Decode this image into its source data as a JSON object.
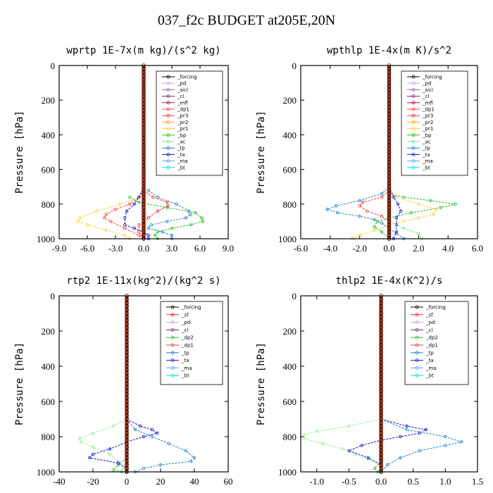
{
  "figure_title": "037_f2c  BUDGET at205E,20N",
  "colors": {
    "forcing": "#000000",
    "pd": "#c8a0e0",
    "sicl": "#8c64c8",
    "cl": "#8a1a8a",
    "mfl": "#c01050",
    "dp1": "#ff4040",
    "pr3": "#ff3030",
    "pr2": "#ffa500",
    "pr1": "#ffd030",
    "bp": "#20c020",
    "ac": "#80e080",
    "tp": "#2080d0",
    "ta": "#1010e0",
    "ma": "#60a0ff",
    "bt": "#00e0e0",
    "sf": "#ff2020",
    "dp2": "#30c030",
    "dp1_green": "#90f090",
    "zero_line": "#b03010"
  },
  "chart_data": [
    {
      "type": "line",
      "title": "wprtp  1E-7x(m kg)/(s^2 kg)",
      "ylabel": "Pressure [hPa]",
      "xlim": [
        -9,
        9
      ],
      "ylim": [
        1000,
        0
      ],
      "xticks": [
        "-9.0",
        "-6.0",
        "-3.0",
        "0.0",
        "3.0",
        "6.0",
        "9.0"
      ],
      "yticks": [
        "0",
        "200",
        "400",
        "600",
        "800",
        "1000"
      ],
      "legend": [
        "_forcing",
        "_pd",
        "_sicl",
        "_cl",
        "_mfl",
        "_dp1",
        "_pr3",
        "_pr2",
        "_pr1",
        "_bp",
        "_ac",
        "_tp",
        "_ta",
        "_ma",
        "_bt"
      ],
      "series": [
        {
          "key": "pr1",
          "name": "_pr1",
          "p": [
            720,
            760,
            800,
            840,
            880,
            900,
            920,
            950,
            980,
            1000
          ],
          "x": [
            0,
            -0.4,
            -2.5,
            -5,
            -6.8,
            -7,
            -6,
            -4,
            -2,
            -1.5
          ]
        },
        {
          "key": "dp1",
          "name": "_dp1",
          "p": [
            720,
            760,
            800,
            830,
            860,
            880,
            900,
            940,
            980,
            1000
          ],
          "x": [
            0,
            -0.5,
            -1.5,
            -3,
            -4,
            -4.2,
            -3.5,
            -2,
            -0.5,
            0
          ]
        },
        {
          "key": "bp",
          "name": "_bp",
          "p": [
            760,
            790,
            820,
            850,
            880,
            900,
            920,
            940,
            960,
            980,
            1000
          ],
          "x": [
            -1.5,
            -0.5,
            2.5,
            5.5,
            6.2,
            6.3,
            5,
            3,
            1.5,
            1.2,
            1.5
          ]
        },
        {
          "key": "tp",
          "name": "_tp",
          "p": [
            720,
            760,
            800,
            840,
            860,
            880,
            900,
            920,
            940,
            960,
            980,
            1000
          ],
          "x": [
            0.5,
            1.5,
            3.5,
            4.8,
            5,
            4.5,
            2.5,
            0.8,
            0.5,
            2,
            3,
            3
          ]
        },
        {
          "key": "ta",
          "name": "_ta",
          "p": [
            700,
            760,
            800,
            840,
            880,
            920,
            940,
            960,
            980,
            1000
          ],
          "x": [
            0,
            -0.5,
            -1,
            -1.8,
            -2,
            -2,
            -1,
            0,
            0.5,
            0.5
          ]
        },
        {
          "key": "pr3",
          "name": "_pr3",
          "p": [
            720,
            760,
            790,
            810,
            840,
            880,
            920,
            960,
            1000
          ],
          "x": [
            0,
            1,
            2.5,
            2.6,
            1.5,
            0.5,
            -0.5,
            -0.5,
            0
          ]
        }
      ]
    },
    {
      "type": "line",
      "title": "wpthlp  1E-4x(m K)/s^2",
      "ylabel": "Pressure [hPa]",
      "xlim": [
        -6,
        6
      ],
      "ylim": [
        1000,
        0
      ],
      "xticks": [
        "-6.0",
        "-4.0",
        "-2.0",
        "0.0",
        "2.0",
        "4.0",
        "6.0"
      ],
      "yticks": [
        "0",
        "200",
        "400",
        "600",
        "800",
        "1000"
      ],
      "legend": [
        "_forcing",
        "_pd",
        "_sicl",
        "_cl",
        "_mfl",
        "_dp1",
        "_pr3",
        "_pr2",
        "_pr1",
        "_bp",
        "_ac",
        "_tp",
        "_ta",
        "_ma",
        "_bt"
      ],
      "series": [
        {
          "key": "tp",
          "name": "_tp",
          "p": [
            700,
            740,
            780,
            810,
            830,
            850,
            870,
            890,
            910,
            940,
            970,
            1000
          ],
          "x": [
            0,
            -0.5,
            -2,
            -3.6,
            -4.2,
            -3.5,
            -2,
            -1,
            -0.5,
            0,
            0.5,
            1
          ]
        },
        {
          "key": "bp",
          "name": "_bp",
          "p": [
            700,
            740,
            760,
            780,
            800,
            820,
            850,
            880,
            900,
            930,
            960,
            1000
          ],
          "x": [
            0,
            0,
            1,
            2.8,
            4.5,
            3.5,
            1.5,
            0,
            -0.8,
            -1,
            -0.5,
            0
          ]
        },
        {
          "key": "pr1",
          "name": "_pr1",
          "p": [
            720,
            760,
            800,
            830,
            860,
            880,
            900,
            920,
            950,
            980,
            1000
          ],
          "x": [
            0,
            0.5,
            2,
            3.2,
            3,
            2,
            1,
            0,
            -1,
            -2,
            -2.5
          ]
        },
        {
          "key": "dp1",
          "name": "_dp1",
          "p": [
            720,
            760,
            790,
            810,
            840,
            870,
            900,
            940,
            980,
            1000
          ],
          "x": [
            0,
            -0.5,
            -1.8,
            -2,
            -1.5,
            -0.5,
            0,
            0,
            0,
            0
          ]
        },
        {
          "key": "ta",
          "name": "_ta",
          "p": [
            700,
            760,
            800,
            840,
            880,
            920,
            960,
            1000
          ],
          "x": [
            0,
            0.3,
            0.6,
            0.8,
            0.5,
            0.5,
            0.5,
            0.3
          ]
        },
        {
          "key": "ac",
          "name": "_ac",
          "p": [
            900,
            940,
            970,
            1000
          ],
          "x": [
            0,
            1,
            2,
            2.2
          ]
        }
      ]
    },
    {
      "type": "line",
      "title": "rtp2  1E-11x(kg^2)/(kg^2 s)",
      "ylabel": "Pressure [hPa]",
      "xlim": [
        -40,
        60
      ],
      "ylim": [
        1000,
        0
      ],
      "xticks": [
        "-40",
        "-20",
        "0",
        "20",
        "40",
        "60"
      ],
      "yticks": [
        "0",
        "200",
        "400",
        "600",
        "800",
        "1000"
      ],
      "legend": [
        "_forcing",
        "_sf",
        "_pd",
        "_cl",
        "_dp2",
        "_dp1",
        "_tp",
        "_ta",
        "_ma",
        "_bt"
      ],
      "series": [
        {
          "key": "dp1_green",
          "name": "_dp1",
          "p": [
            700,
            740,
            780,
            810,
            830,
            860,
            900,
            940,
            980,
            1000
          ],
          "x": [
            0,
            -8,
            -20,
            -28,
            -27,
            -20,
            -10,
            -5,
            -2,
            0
          ]
        },
        {
          "key": "dp2",
          "name": "_dp2",
          "p": [
            920,
            960,
            990,
            1000
          ],
          "x": [
            0,
            -5,
            -8,
            -3
          ]
        },
        {
          "key": "ta",
          "name": "_ta",
          "p": [
            700,
            740,
            760,
            780,
            800,
            830,
            870,
            900,
            920,
            950,
            980,
            1000
          ],
          "x": [
            0,
            8,
            15,
            18,
            10,
            0,
            -10,
            -20,
            -22,
            -5,
            0,
            0
          ]
        },
        {
          "key": "tp",
          "name": "_tp",
          "p": [
            700,
            760,
            800,
            840,
            880,
            920,
            940,
            960,
            980,
            1000
          ],
          "x": [
            0,
            5,
            15,
            25,
            35,
            40,
            38,
            20,
            10,
            5
          ]
        }
      ]
    },
    {
      "type": "line",
      "title": "thlp2  1E-4x(K^2)/s",
      "ylabel": "Pressure [hPa]",
      "xlim": [
        -1.25,
        1.5
      ],
      "ylim": [
        1000,
        0
      ],
      "xticks": [
        "-1.0",
        "-0.5",
        "0.0",
        "0.5",
        "1.0",
        "1.5"
      ],
      "yticks": [
        "0",
        "200",
        "400",
        "600",
        "800",
        "1000"
      ],
      "legend": [
        "_forcing",
        "_sf",
        "_pd",
        "_cl",
        "_dp2",
        "_dp1",
        "_tp",
        "_ta",
        "_ma",
        "_bt"
      ],
      "series": [
        {
          "key": "dp1_green",
          "name": "_dp1",
          "p": [
            700,
            740,
            770,
            790,
            810,
            840,
            870,
            900,
            930,
            960,
            1000
          ],
          "x": [
            0,
            -0.5,
            -1,
            -1.2,
            -1.2,
            -0.9,
            -0.6,
            -0.4,
            -0.2,
            0,
            0
          ]
        },
        {
          "key": "ta",
          "name": "_ta",
          "p": [
            700,
            740,
            760,
            780,
            800,
            820,
            850,
            880,
            920,
            960,
            1000
          ],
          "x": [
            0,
            0.4,
            0.7,
            0.6,
            0.3,
            0,
            -0.3,
            -0.5,
            -0.2,
            0,
            0
          ]
        },
        {
          "key": "tp",
          "name": "_tp",
          "p": [
            700,
            760,
            800,
            830,
            850,
            880,
            920,
            960,
            1000
          ],
          "x": [
            0,
            0.4,
            1,
            1.25,
            1,
            0.6,
            0.3,
            0.1,
            0
          ]
        },
        {
          "key": "dp2",
          "name": "_dp2",
          "p": [
            940,
            980,
            1000
          ],
          "x": [
            0,
            -0.1,
            -0.05
          ]
        }
      ]
    }
  ]
}
